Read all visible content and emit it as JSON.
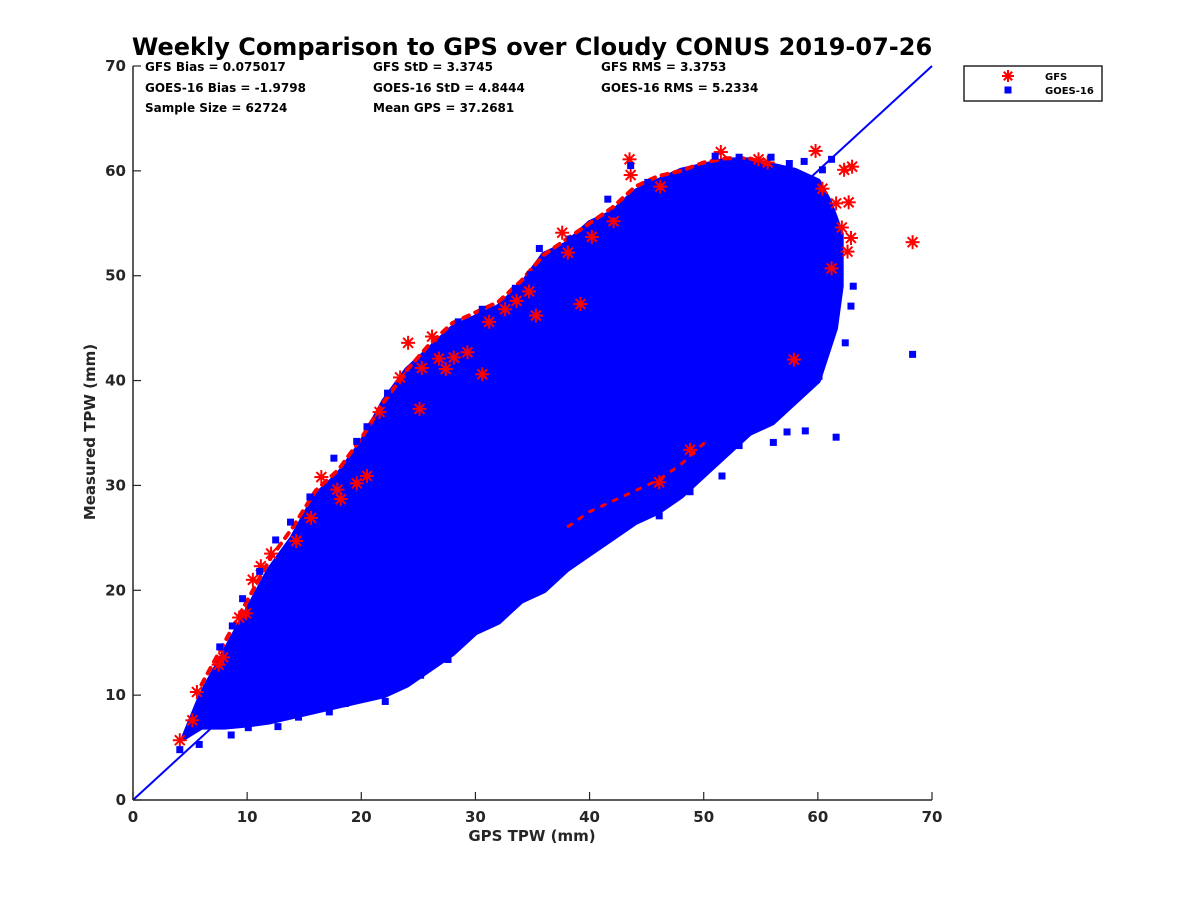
{
  "chart_data": {
    "type": "scatter",
    "title": "Weekly Comparison to GPS over Cloudy CONUS 2019-07-26",
    "xlabel": "GPS TPW (mm)",
    "ylabel": "Measured TPW (mm)",
    "xlim": [
      0,
      70
    ],
    "ylim": [
      0,
      70
    ],
    "xticks": [
      "0",
      "10",
      "20",
      "30",
      "40",
      "50",
      "60",
      "70"
    ],
    "yticks": [
      "0",
      "10",
      "20",
      "30",
      "40",
      "50",
      "60",
      "70"
    ],
    "grid": false,
    "legend_position": "top-right (outside plot)",
    "stats": [
      [
        "GFS Bias = 0.075017",
        "GFS StD = 3.3745",
        "GFS RMS = 3.3753"
      ],
      [
        "GOES-16 Bias = -1.9798",
        "GOES-16 StD = 4.8444",
        "GOES-16 RMS = 5.2334"
      ],
      [
        "Sample Size = 62724",
        "Mean GPS = 37.2681",
        ""
      ]
    ],
    "reference_line": {
      "x": [
        0,
        70
      ],
      "y": [
        0,
        70
      ],
      "color": "#0000ff"
    },
    "series": [
      {
        "name": "GFS",
        "marker": "asterisk",
        "color": "#ff0000",
        "points": [
          [
            4.1,
            5.7
          ],
          [
            5.2,
            7.6
          ],
          [
            5.6,
            10.3
          ],
          [
            7.5,
            12.9
          ],
          [
            7.9,
            13.6
          ],
          [
            9.3,
            17.4
          ],
          [
            9.9,
            17.8
          ],
          [
            10.5,
            21.0
          ],
          [
            11.2,
            22.3
          ],
          [
            12.1,
            23.5
          ],
          [
            14.3,
            24.7
          ],
          [
            15.6,
            26.9
          ],
          [
            16.5,
            30.8
          ],
          [
            17.9,
            29.6
          ],
          [
            18.2,
            28.7
          ],
          [
            19.6,
            30.2
          ],
          [
            20.5,
            30.9
          ],
          [
            21.6,
            37.0
          ],
          [
            23.4,
            40.3
          ],
          [
            24.1,
            43.6
          ],
          [
            25.1,
            37.3
          ],
          [
            25.3,
            41.2
          ],
          [
            26.2,
            44.2
          ],
          [
            26.8,
            42.1
          ],
          [
            27.4,
            41.1
          ],
          [
            28.1,
            42.2
          ],
          [
            29.3,
            42.7
          ],
          [
            30.6,
            40.6
          ],
          [
            31.2,
            45.6
          ],
          [
            32.6,
            46.8
          ],
          [
            33.6,
            47.6
          ],
          [
            34.7,
            48.5
          ],
          [
            35.3,
            46.2
          ],
          [
            37.6,
            54.1
          ],
          [
            38.1,
            52.2
          ],
          [
            39.2,
            47.3
          ],
          [
            40.2,
            53.7
          ],
          [
            42.1,
            55.2
          ],
          [
            43.5,
            61.1
          ],
          [
            43.6,
            59.6
          ],
          [
            46.2,
            58.5
          ],
          [
            46.1,
            30.3
          ],
          [
            48.8,
            33.4
          ],
          [
            51.5,
            61.8
          ],
          [
            54.8,
            61.1
          ],
          [
            55.6,
            60.8
          ],
          [
            57.9,
            42.0
          ],
          [
            59.8,
            61.9
          ],
          [
            60.4,
            58.3
          ],
          [
            61.6,
            56.9
          ],
          [
            62.1,
            54.6
          ],
          [
            62.3,
            60.1
          ],
          [
            62.7,
            57.0
          ],
          [
            62.9,
            53.6
          ],
          [
            63.0,
            60.4
          ],
          [
            62.6,
            52.3
          ],
          [
            61.2,
            50.7
          ],
          [
            68.3,
            53.2
          ]
        ]
      },
      {
        "name": "GOES-16",
        "marker": "square",
        "color": "#0000ff",
        "points": [
          [
            4.1,
            4.8
          ],
          [
            5.8,
            5.3
          ],
          [
            6.1,
            7.9
          ],
          [
            7.3,
            7.4
          ],
          [
            8.6,
            6.2
          ],
          [
            10.1,
            6.9
          ],
          [
            11.6,
            7.8
          ],
          [
            12.7,
            7.0
          ],
          [
            14.5,
            7.9
          ],
          [
            15.6,
            9.3
          ],
          [
            17.2,
            8.4
          ],
          [
            18.6,
            9.2
          ],
          [
            22.1,
            9.4
          ],
          [
            23.0,
            10.8
          ],
          [
            25.2,
            11.9
          ],
          [
            27.6,
            13.4
          ],
          [
            29.3,
            15.6
          ],
          [
            30.2,
            17.0
          ],
          [
            33.6,
            20.0
          ],
          [
            35.7,
            20.7
          ],
          [
            38.3,
            22.7
          ],
          [
            40.3,
            24.9
          ],
          [
            42.2,
            26.9
          ],
          [
            44.6,
            28.8
          ],
          [
            46.1,
            27.1
          ],
          [
            48.8,
            29.4
          ],
          [
            51.6,
            30.9
          ],
          [
            53.1,
            33.8
          ],
          [
            56.1,
            34.1
          ],
          [
            57.3,
            35.1
          ],
          [
            58.9,
            35.2
          ],
          [
            61.6,
            34.6
          ],
          [
            60.1,
            40.4
          ],
          [
            62.4,
            43.6
          ],
          [
            68.3,
            42.5
          ],
          [
            62.9,
            47.1
          ],
          [
            63.1,
            49.0
          ],
          [
            61.2,
            61.1
          ],
          [
            60.4,
            60.1
          ],
          [
            58.8,
            60.9
          ],
          [
            56.5,
            60.2
          ],
          [
            53.1,
            61.3
          ],
          [
            51.0,
            61.4
          ],
          [
            49.9,
            60.2
          ],
          [
            48.5,
            59.5
          ],
          [
            45.1,
            58.9
          ],
          [
            43.6,
            60.5
          ],
          [
            42.1,
            55.9
          ],
          [
            41.6,
            57.3
          ],
          [
            38.3,
            53.5
          ],
          [
            35.6,
            52.6
          ],
          [
            34.8,
            50.1
          ],
          [
            33.5,
            48.8
          ],
          [
            30.6,
            46.8
          ],
          [
            28.5,
            45.6
          ],
          [
            26.0,
            42.5
          ],
          [
            24.2,
            40.5
          ],
          [
            22.3,
            38.8
          ],
          [
            20.5,
            35.6
          ],
          [
            19.6,
            34.2
          ],
          [
            17.6,
            32.6
          ],
          [
            15.5,
            28.9
          ],
          [
            13.8,
            26.5
          ],
          [
            12.5,
            24.8
          ],
          [
            11.1,
            21.8
          ],
          [
            9.6,
            19.2
          ],
          [
            8.7,
            16.6
          ],
          [
            7.6,
            14.6
          ],
          [
            6.9,
            11.1
          ],
          [
            6.1,
            9.3
          ],
          [
            55.9,
            61.3
          ],
          [
            57.5,
            60.7
          ]
        ]
      }
    ]
  }
}
